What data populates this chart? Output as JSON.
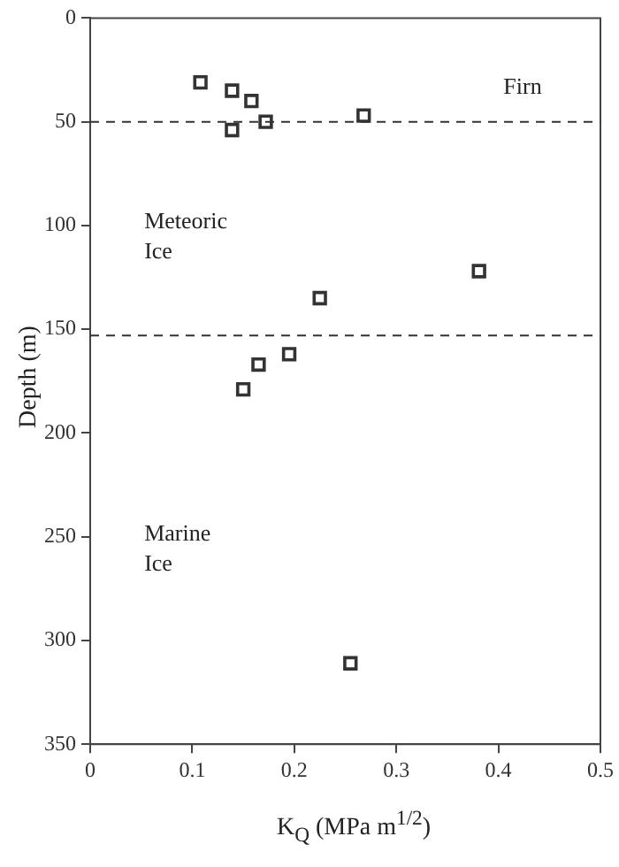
{
  "chart_data": {
    "type": "scatter",
    "xlabel": "K$_{Q}$ (MPa m$^{1/2}$)",
    "ylabel": "Depth (m)",
    "x": [
      0.108,
      0.139,
      0.158,
      0.139,
      0.172,
      0.268,
      0.381,
      0.225,
      0.195,
      0.165,
      0.15,
      0.255
    ],
    "values": [
      31,
      35,
      40,
      54,
      50,
      47,
      122,
      135,
      162,
      167,
      179,
      311
    ],
    "color": "#333333",
    "marker": "square",
    "grid": false,
    "legend": false,
    "xlim": [
      0,
      0.5
    ],
    "xticks": [
      0,
      0.1,
      0.2,
      0.3,
      0.4,
      0.5
    ],
    "ylim": [
      350,
      0
    ],
    "yticks": [
      0,
      50,
      100,
      150,
      200,
      250,
      300,
      350
    ],
    "ref_lines": [
      {
        "axis": "y",
        "value": 50,
        "line_style": "dashed",
        "color": "#333333"
      },
      {
        "axis": "y",
        "value": 153,
        "line_style": "dashed",
        "color": "#333333"
      }
    ],
    "annotations": [
      "Firn",
      "Meteoric\nIce",
      "Marine\nIce"
    ]
  }
}
